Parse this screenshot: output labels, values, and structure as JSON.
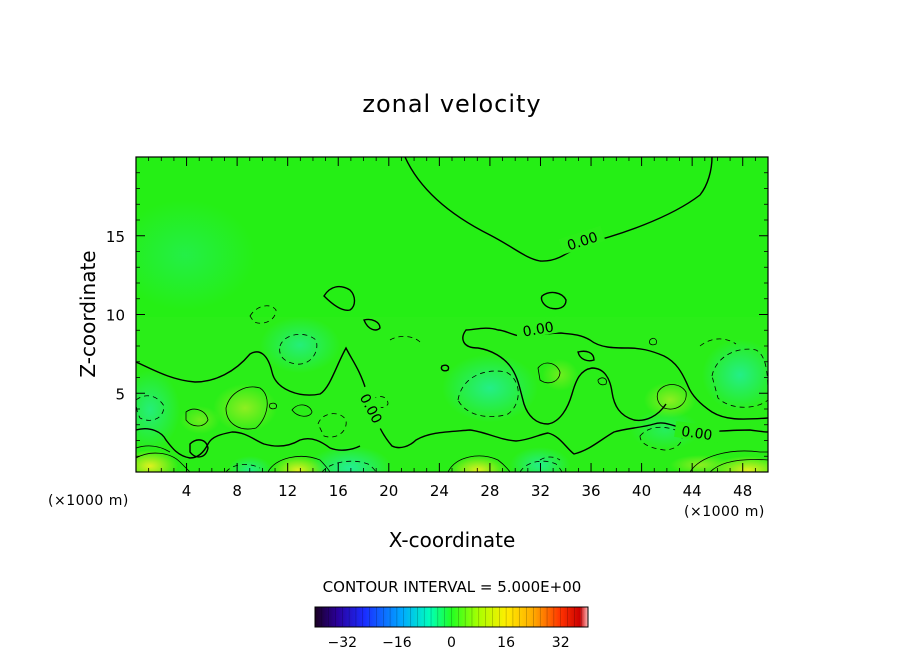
{
  "chart_data": {
    "type": "heatmap",
    "title": "zonal velocity",
    "xlabel": "X-coordinate",
    "ylabel": "Z-coordinate",
    "x_units": "(×1000 m)",
    "y_units": "(×1000 m)",
    "xlim": [
      0,
      50
    ],
    "ylim": [
      0,
      20
    ],
    "x_ticks": [
      4,
      8,
      12,
      16,
      20,
      24,
      28,
      32,
      36,
      40,
      44,
      48
    ],
    "y_ticks": [
      5,
      10,
      15
    ],
    "contour_interval_text": "CONTOUR INTERVAL = 5.000E+00",
    "contour_labels": [
      "0.00",
      "0.00",
      "0.00",
      "0.00"
    ],
    "colorbar": {
      "range": [
        -40,
        40
      ],
      "ticks": [
        -32,
        -16,
        0,
        16,
        32
      ],
      "colormap": "rainbow"
    },
    "colors": {
      "background_field": "#22ee11",
      "positive_near_surface": "#d8f020",
      "negative_pockets": "#22eeaa"
    }
  }
}
